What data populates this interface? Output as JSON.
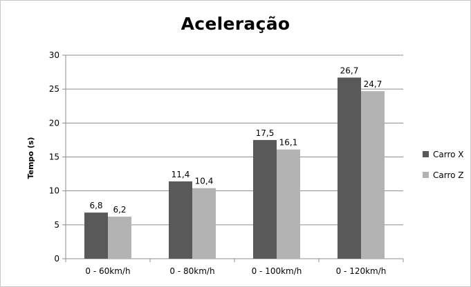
{
  "chart_data": {
    "type": "bar",
    "title": "Aceleração",
    "ylabel": "Tempo (s)",
    "xlabel": "",
    "categories": [
      "0 - 60km/h",
      "0 - 80km/h",
      "0 - 100km/h",
      "0 - 120km/h"
    ],
    "ylim": [
      0,
      30
    ],
    "yticks": [
      "0",
      "5",
      "10",
      "15",
      "20",
      "25",
      "30"
    ],
    "grid": true,
    "legend_position": "right",
    "series": [
      {
        "name": "Carro X",
        "color": "#595959",
        "values": [
          6.8,
          11.4,
          17.5,
          26.7
        ],
        "labels": [
          "6,8",
          "11,4",
          "17,5",
          "26,7"
        ]
      },
      {
        "name": "Carro Z",
        "color": "#b3b3b3",
        "values": [
          6.2,
          10.4,
          16.1,
          24.7
        ],
        "labels": [
          "6,2",
          "10,4",
          "16,1",
          "24,7"
        ]
      }
    ]
  }
}
